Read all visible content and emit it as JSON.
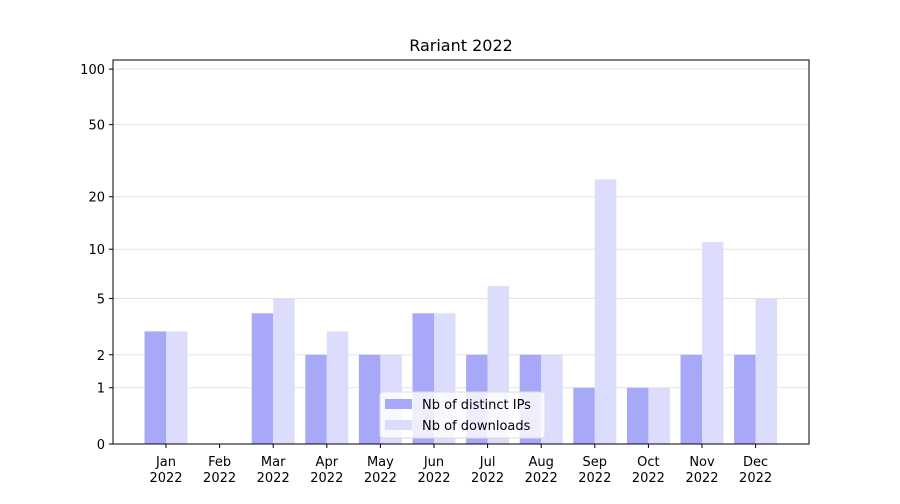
{
  "chart_data": {
    "type": "bar",
    "title": "Rariant 2022",
    "categories": [
      "Jan\n2022",
      "Feb\n2022",
      "Mar\n2022",
      "Apr\n2022",
      "May\n2022",
      "Jun\n2022",
      "Jul\n2022",
      "Aug\n2022",
      "Sep\n2022",
      "Oct\n2022",
      "Nov\n2022",
      "Dec\n2022"
    ],
    "series": [
      {
        "name": "Nb of distinct IPs",
        "color": "#a8a8f8",
        "values": [
          3,
          0,
          4,
          2,
          2,
          4,
          2,
          2,
          1,
          1,
          2,
          2
        ]
      },
      {
        "name": "Nb of downloads",
        "color": "#dcdcfc",
        "values": [
          3,
          0,
          5,
          3,
          2,
          4,
          6,
          2,
          25,
          1,
          11,
          5
        ]
      }
    ],
    "scale": "log1p",
    "ylim": [
      0,
      112
    ],
    "yticks": [
      0,
      1,
      2,
      5,
      10,
      20,
      50,
      100
    ],
    "grid": true,
    "legend": "lower center"
  }
}
